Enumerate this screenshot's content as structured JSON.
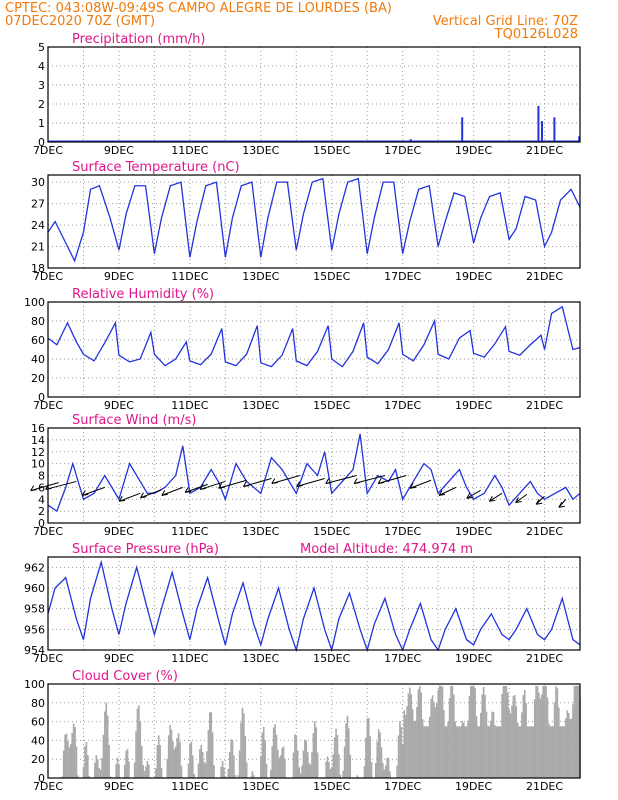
{
  "header": {
    "line1": "CPTEC:   043:08W-09:49S   CAMPO ALEGRE DE LOURDES (BA)",
    "line2_left": "07DEC2020 70Z (GMT)",
    "line2_right": "Vertical Grid Line: 70Z",
    "line3_right": "TQ0126L028"
  },
  "x_ticks": [
    "7DEC",
    "9DEC",
    "11DEC",
    "13DEC",
    "15DEC",
    "17DEC",
    "19DEC",
    "21DEC"
  ],
  "x_range_days": [
    7,
    22
  ],
  "colors": {
    "line": "#2233dd",
    "title": "#e0168a",
    "header": "#f07a0a",
    "cloud": "#aaaaaa",
    "grid": "#999999"
  },
  "chart_data": [
    {
      "type": "bar",
      "title": "Precipitation (mm/h)",
      "ylim": [
        0,
        5
      ],
      "yticks": [
        "0",
        "1",
        "2",
        "3",
        "4",
        "5"
      ],
      "bars": [
        [
          17.2,
          0.15
        ],
        [
          18.65,
          1.3
        ],
        [
          20.8,
          1.9
        ],
        [
          20.9,
          1.1
        ],
        [
          21.25,
          1.3
        ],
        [
          21.95,
          0.3
        ]
      ]
    },
    {
      "type": "line",
      "title": "Surface Temperature (nC)",
      "ylim": [
        18,
        31
      ],
      "yticks": [
        "18",
        "21",
        "24",
        "27",
        "30"
      ],
      "x": [
        7,
        7.2,
        7.45,
        7.75,
        8,
        8.2,
        8.45,
        8.75,
        9,
        9.2,
        9.45,
        9.75,
        10,
        10.2,
        10.45,
        10.75,
        11,
        11.2,
        11.45,
        11.75,
        12,
        12.2,
        12.45,
        12.75,
        13,
        13.2,
        13.45,
        13.75,
        14,
        14.2,
        14.45,
        14.75,
        15,
        15.2,
        15.45,
        15.75,
        16,
        16.2,
        16.45,
        16.75,
        17,
        17.2,
        17.45,
        17.75,
        18,
        18.2,
        18.45,
        18.75,
        19,
        19.2,
        19.45,
        19.75,
        20,
        20.2,
        20.45,
        20.75,
        21,
        21.2,
        21.45,
        21.75,
        22
      ],
      "y": [
        23,
        24.5,
        22,
        19,
        23,
        29,
        29.5,
        25,
        20.5,
        25.5,
        29.5,
        29.5,
        20,
        25,
        29.5,
        30,
        19.5,
        24.5,
        29.5,
        30,
        19.5,
        25,
        29.5,
        30,
        19.5,
        25,
        30,
        30,
        20.5,
        25.5,
        30,
        30.5,
        20.5,
        25.5,
        30,
        30.5,
        20,
        25,
        30,
        30,
        20,
        24.5,
        29,
        29.5,
        21,
        24.5,
        28.5,
        28,
        21.5,
        25,
        28,
        28.5,
        22,
        23.5,
        28,
        27.5,
        21,
        23,
        27.5,
        29,
        26.5
      ]
    },
    {
      "type": "line",
      "title": "Relative Humidity (%)",
      "ylim": [
        0,
        100
      ],
      "yticks": [
        "0",
        "20",
        "40",
        "60",
        "80",
        "100"
      ],
      "x": [
        7,
        7.25,
        7.55,
        7.8,
        8,
        8.3,
        8.6,
        8.9,
        9,
        9.3,
        9.6,
        9.9,
        10,
        10.3,
        10.6,
        10.9,
        11,
        11.3,
        11.6,
        11.9,
        12,
        12.3,
        12.6,
        12.9,
        13,
        13.3,
        13.6,
        13.9,
        14,
        14.3,
        14.6,
        14.9,
        15,
        15.3,
        15.6,
        15.9,
        16,
        16.3,
        16.6,
        16.9,
        17,
        17.3,
        17.6,
        17.9,
        18,
        18.3,
        18.6,
        18.9,
        19,
        19.3,
        19.6,
        19.9,
        20,
        20.3,
        20.6,
        20.9,
        21,
        21.2,
        21.5,
        21.8,
        22
      ],
      "y": [
        62,
        55,
        78,
        58,
        45,
        38,
        57,
        78,
        44,
        37,
        40,
        68,
        45,
        33,
        40,
        58,
        38,
        34,
        45,
        72,
        37,
        33,
        45,
        75,
        36,
        32,
        44,
        72,
        38,
        33,
        48,
        75,
        40,
        32,
        48,
        78,
        42,
        35,
        50,
        78,
        45,
        38,
        55,
        80,
        45,
        40,
        62,
        70,
        46,
        42,
        56,
        74,
        48,
        44,
        55,
        65,
        50,
        88,
        95,
        50,
        52
      ]
    },
    {
      "type": "line",
      "title": "Surface Wind (m/s)",
      "ylim": [
        0,
        16
      ],
      "yticks": [
        "0",
        "2",
        "4",
        "6",
        "8",
        "10",
        "12",
        "14",
        "16"
      ],
      "x": [
        7,
        7.25,
        7.5,
        7.7,
        8,
        8.3,
        8.6,
        8.8,
        9,
        9.3,
        9.6,
        9.8,
        10,
        10.3,
        10.6,
        10.8,
        11,
        11.3,
        11.6,
        11.8,
        12,
        12.3,
        12.6,
        12.8,
        13,
        13.3,
        13.6,
        13.8,
        14,
        14.3,
        14.6,
        14.8,
        15,
        15.3,
        15.6,
        15.8,
        16,
        16.3,
        16.6,
        16.8,
        17,
        17.3,
        17.6,
        17.8,
        18,
        18.3,
        18.6,
        18.8,
        19,
        19.3,
        19.6,
        19.8,
        20,
        20.3,
        20.6,
        20.8,
        21,
        21.3,
        21.6,
        21.8,
        22
      ],
      "y": [
        3,
        2,
        6,
        10,
        4,
        5,
        8,
        6,
        4,
        10,
        7,
        5,
        5,
        6,
        8,
        13,
        5,
        6,
        9,
        7,
        4,
        10,
        7,
        6,
        5,
        11,
        9,
        7,
        5,
        10,
        8,
        12,
        5,
        7,
        9,
        15,
        5,
        8,
        7,
        9,
        4,
        7,
        10,
        9,
        5,
        7,
        9,
        6,
        4,
        5,
        8,
        6,
        3,
        5,
        7,
        5,
        4,
        5,
        6,
        4,
        5
      ],
      "arrows": [
        [
          7.3,
          6.8,
          -2
        ],
        [
          7.8,
          7,
          -2.2
        ],
        [
          8.6,
          6,
          -1.6
        ],
        [
          9.6,
          5,
          -1.5
        ],
        [
          10.2,
          5.6,
          -1.5
        ],
        [
          10.8,
          6,
          -1.5
        ],
        [
          11.5,
          6.5,
          -1.6
        ],
        [
          12,
          7,
          -1.8
        ],
        [
          12.6,
          7.2,
          -2
        ],
        [
          13.3,
          7.5,
          -2
        ],
        [
          14.1,
          8,
          -2
        ],
        [
          14.8,
          7.5,
          -2
        ],
        [
          15.7,
          8,
          -2.2
        ],
        [
          16.5,
          8,
          -2.2
        ],
        [
          17.1,
          8,
          -2
        ],
        [
          17.8,
          7.2,
          -1.5
        ],
        [
          18.5,
          6,
          -1.2
        ],
        [
          19.2,
          5.5,
          -1
        ],
        [
          19.8,
          5,
          -0.9
        ],
        [
          20.5,
          4.8,
          -0.8
        ],
        [
          21,
          4.5,
          -0.6
        ],
        [
          21.6,
          4,
          -0.5
        ]
      ]
    },
    {
      "type": "line",
      "title": "Surface Pressure (hPa)",
      "annotation": "Model Altitude: 474.974 m",
      "ylim": [
        954,
        963
      ],
      "yticks": [
        "954",
        "956",
        "958",
        "960",
        "962"
      ],
      "x": [
        7,
        7.2,
        7.5,
        7.8,
        8,
        8.2,
        8.5,
        8.8,
        9,
        9.2,
        9.5,
        9.8,
        10,
        10.2,
        10.5,
        10.8,
        11,
        11.2,
        11.5,
        11.8,
        12,
        12.2,
        12.5,
        12.8,
        13,
        13.2,
        13.5,
        13.8,
        14,
        14.2,
        14.5,
        14.8,
        15,
        15.2,
        15.5,
        15.8,
        16,
        16.2,
        16.5,
        16.8,
        17,
        17.2,
        17.5,
        17.8,
        18,
        18.2,
        18.5,
        18.8,
        19,
        19.2,
        19.5,
        19.8,
        20,
        20.2,
        20.5,
        20.8,
        21,
        21.2,
        21.5,
        21.8,
        22
      ],
      "y": [
        957.5,
        960,
        961,
        957,
        955,
        959,
        962.5,
        958,
        955.5,
        958.5,
        962,
        958,
        955.5,
        958,
        961.5,
        957.5,
        955,
        958,
        961,
        957,
        954.5,
        957.5,
        960.5,
        956.5,
        954.5,
        957,
        960,
        956,
        954,
        957,
        960,
        956,
        954,
        957,
        959.5,
        956,
        954,
        956.5,
        959,
        955.5,
        954,
        956,
        958.5,
        955,
        954,
        956,
        958,
        955,
        954.5,
        956,
        957.5,
        955.5,
        955,
        956,
        958,
        955.5,
        955,
        956,
        959,
        955,
        954.5
      ]
    },
    {
      "type": "bar",
      "title": "Cloud Cover (%)",
      "ylim": [
        0,
        100
      ],
      "yticks": [
        "0",
        "20",
        "40",
        "60",
        "80",
        "100"
      ]
    }
  ]
}
